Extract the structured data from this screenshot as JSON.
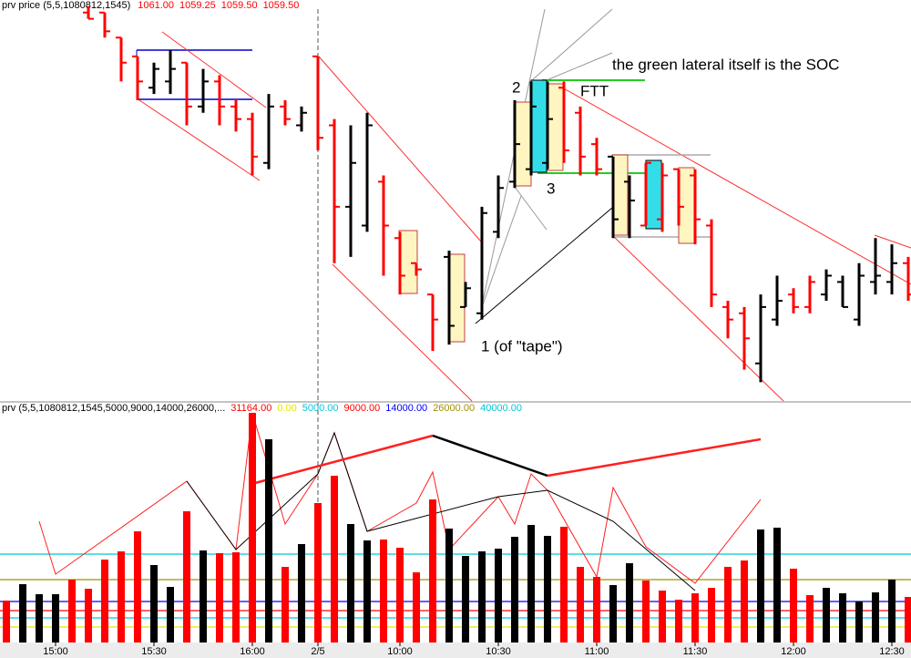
{
  "chart_data": [
    {
      "type": "ohlc",
      "title": "prv price (5,5,1080812,1545)",
      "last_values": [
        {
          "value": 1061,
          "label": "1061.00"
        },
        {
          "value": 1059.25,
          "label": "1059.25"
        },
        {
          "value": 1059.5,
          "label": "1059.50"
        },
        {
          "value": 1059.5,
          "label": "1059.50"
        }
      ],
      "ylim": [
        1055.25,
        1071.25
      ],
      "open": [
        null,
        null,
        null,
        null,
        null,
        1070.75,
        1070.75,
        1069.75,
        1069.0,
        1067.75,
        1068.0,
        1068.75,
        1067.0,
        1068.0,
        1067.0,
        1066.5,
        1064.75,
        1067.0,
        1066.25,
        1069.0,
        1066.25,
        1063.0,
        1062.25,
        1064.0,
        1061.75,
        1060.75,
        1059.5,
        1061.0,
        1059.0,
        1058.75,
        1062.0,
        1064.0,
        1064.5,
        1064.75,
        1067.75,
        1066.75,
        1065.5,
        1065.0,
        1064.0,
        1062.25,
        1062.5,
        1064.5,
        1064.25,
        1062.25,
        1059.0,
        1058.75,
        1056.75,
        1058.5,
        1059.5,
        1059.0,
        1059.5,
        1060.0,
        1058.5,
        1060.0,
        1060.0,
        1060.75
      ],
      "high": [
        null,
        null,
        null,
        null,
        null,
        1071.0,
        1070.75,
        1069.75,
        1069.0,
        1068.75,
        1069.25,
        1068.75,
        1068.5,
        1068.25,
        1067.25,
        1066.75,
        1067.5,
        1067.25,
        1067.0,
        1069.0,
        1066.5,
        1066.25,
        1066.75,
        1064.25,
        1062.0,
        1060.75,
        1059.5,
        1061.25,
        1060.0,
        1063.0,
        1064.25,
        1067.25,
        1068.0,
        1068.0,
        1068.0,
        1067.0,
        1065.75,
        1065.0,
        1064.25,
        1064.75,
        1064.75,
        1064.5,
        1064.5,
        1062.5,
        1059.25,
        1059.0,
        1059.5,
        1060.25,
        1059.75,
        1060.25,
        1060.5,
        1060.25,
        1060.75,
        1061.75,
        1061.5,
        1061.0
      ],
      "low": [
        null,
        null,
        null,
        null,
        null,
        1070.5,
        1069.75,
        1068.0,
        1067.25,
        1067.5,
        1067.5,
        1066.25,
        1066.75,
        1066.25,
        1066.0,
        1064.25,
        1064.5,
        1066.25,
        1066.0,
        1065.25,
        1060.75,
        1061.0,
        1062.0,
        1060.25,
        1059.5,
        1060.25,
        1057.25,
        1057.5,
        1059.0,
        1058.5,
        1061.75,
        1063.75,
        1064.25,
        1064.5,
        1064.75,
        1064.25,
        1064.25,
        1061.75,
        1061.75,
        1062.25,
        1062.0,
        1062.25,
        1061.5,
        1059.0,
        1057.75,
        1056.5,
        1056.0,
        1058.25,
        1058.75,
        1058.75,
        1059.25,
        1059.0,
        1058.25,
        1059.5,
        1059.5,
        1059.25
      ],
      "close": [
        null,
        null,
        null,
        null,
        null,
        1070.5,
        1070.0,
        1068.75,
        1068.0,
        1068.5,
        1068.5,
        1067.0,
        1068.0,
        1067.0,
        1066.5,
        1065.0,
        1067.0,
        1066.5,
        1066.75,
        1065.75,
        1063.0,
        1064.75,
        1066.25,
        1062.25,
        1060.25,
        1060.5,
        1058.5,
        1058.25,
        1059.75,
        1062.75,
        1063.75,
        1065.5,
        1067.0,
        1066.5,
        1065.25,
        1065.0,
        1064.5,
        1062.5,
        1063.25,
        1064.75,
        1064.25,
        1063.0,
        1062.5,
        1059.5,
        1058.5,
        1057.75,
        1059.0,
        1059.25,
        1059.0,
        1060.0,
        1060.25,
        1059.0,
        1060.25,
        1060.25,
        1060.75,
        1059.5
      ],
      "annotations": [
        "the green lateral itself is the SOC",
        "FTT",
        "2",
        "3",
        "1 (of \"tape\")"
      ]
    },
    {
      "type": "bar",
      "title": "prv (5,5,1080812,1545,5000,9000,14000,26000,...",
      "last_value": {
        "value": 31164,
        "label": "31164.00"
      },
      "levels": [
        {
          "value": 0,
          "label": "0.00",
          "color": "#e6e600"
        },
        {
          "value": 5000,
          "label": "5000.00",
          "color": "#00c8d8"
        },
        {
          "value": 9000,
          "label": "9000.00",
          "color": "#ff0000"
        },
        {
          "value": 14000,
          "label": "14000.00",
          "color": "#0000ff"
        },
        {
          "value": 26000,
          "label": "26000.00",
          "color": "#a09000"
        },
        {
          "value": 40000,
          "label": "40000.00",
          "color": "#00c8d8"
        }
      ],
      "ylim": [
        -8500,
        119000
      ],
      "categories": [
        null,
        null,
        null,
        "15:00",
        null,
        null,
        null,
        null,
        null,
        "15:30",
        null,
        null,
        null,
        null,
        null,
        "16:00",
        null,
        null,
        null,
        "2/5",
        null,
        null,
        null,
        null,
        "10:00",
        null,
        null,
        null,
        null,
        null,
        "10:30",
        null,
        null,
        null,
        null,
        null,
        "11:00",
        null,
        null,
        null,
        null,
        null,
        "11:30",
        null,
        null,
        null,
        null,
        null,
        "12:00",
        null,
        null,
        null,
        null,
        null,
        "12:30",
        null
      ],
      "values": [
        14500,
        23500,
        18000,
        18000,
        26000,
        21000,
        37000,
        41500,
        52500,
        34000,
        22000,
        63500,
        42000,
        40500,
        41000,
        117500,
        103000,
        33000,
        45500,
        68000,
        83000,
        56500,
        47500,
        48000,
        43500,
        30000,
        70000,
        54000,
        39000,
        41500,
        43000,
        49500,
        56000,
        50000,
        55000,
        33000,
        27500,
        23000,
        35000,
        25500,
        20000,
        15000,
        18500,
        21500,
        33000,
        36500,
        53500,
        54500,
        32000,
        17500,
        21500,
        18500,
        14000,
        19000,
        26000,
        16500
      ],
      "colors": [
        "#ff0000",
        "#000000",
        "#000000",
        "#000000",
        "#ff0000",
        "#ff0000",
        "#ff0000",
        "#ff0000",
        "#ff0000",
        "#000000",
        "#000000",
        "#ff0000",
        "#000000",
        "#ff0000",
        "#ff0000",
        "#ff0000",
        "#000000",
        "#ff0000",
        "#000000",
        "#ff0000",
        "#ff0000",
        "#000000",
        "#000000",
        "#ff0000",
        "#ff0000",
        "#ff0000",
        "#ff0000",
        "#000000",
        "#000000",
        "#000000",
        "#000000",
        "#000000",
        "#000000",
        "#000000",
        "#ff0000",
        "#ff0000",
        "#ff0000",
        "#000000",
        "#000000",
        "#ff0000",
        "#ff0000",
        "#ff0000",
        "#ff0000",
        "#ff0000",
        "#ff0000",
        "#ff0000",
        "#000000",
        "#000000",
        "#ff0000",
        "#ff0000",
        "#000000",
        "#000000",
        "#000000",
        "#000000",
        "#000000",
        "#ff0000"
      ]
    }
  ]
}
